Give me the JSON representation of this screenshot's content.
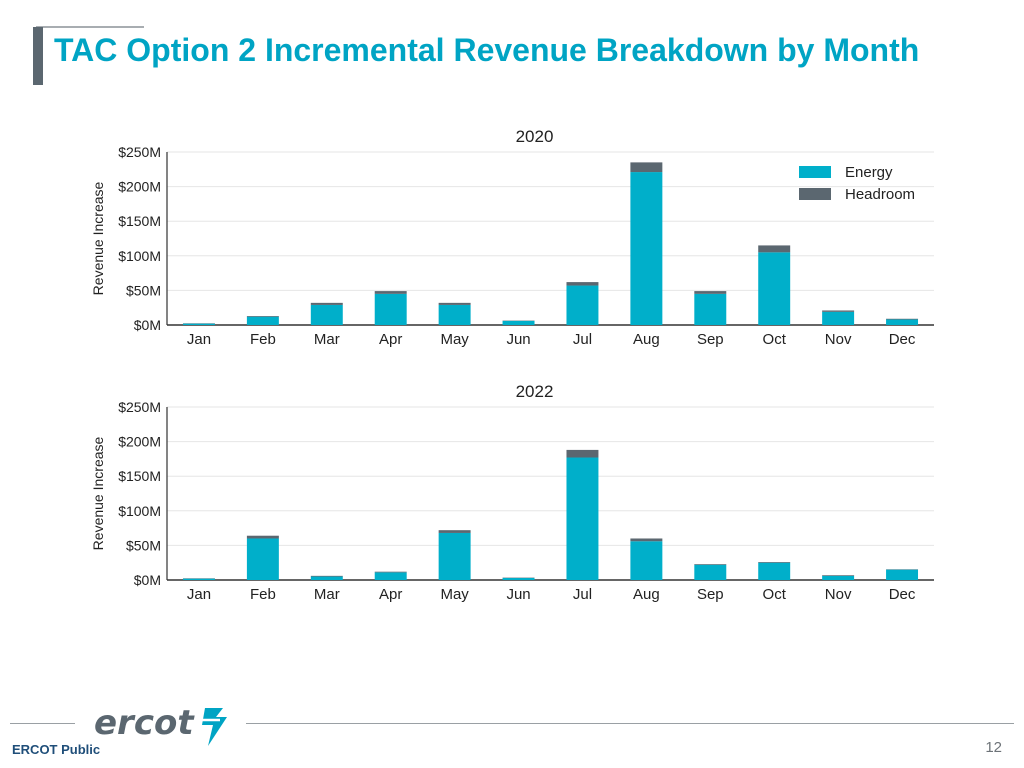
{
  "slide": {
    "title": "TAC Option 2 Incremental Revenue Breakdown by Month",
    "footer_label": "ERCOT Public",
    "page_number": "12",
    "logo_text": "ercot"
  },
  "colors": {
    "title": "#00a4c4",
    "energy": "#00afca",
    "headroom": "#5b6770",
    "axis_text": "#222222",
    "grid": "#e6e6e6"
  },
  "chart_data": [
    {
      "type": "bar",
      "stacked": true,
      "title": "2020",
      "ylabel": "Revenue Increase",
      "xlabel": "",
      "ylim": [
        0,
        250
      ],
      "yticks": [
        0,
        50,
        100,
        150,
        200,
        250
      ],
      "ytick_labels": [
        "$0M",
        "$50M",
        "$100M",
        "$150M",
        "$200M",
        "$250M"
      ],
      "grid": true,
      "legend_position": "top-right",
      "categories": [
        "Jan",
        "Feb",
        "Mar",
        "Apr",
        "May",
        "Jun",
        "Jul",
        "Aug",
        "Sep",
        "Oct",
        "Nov",
        "Dec"
      ],
      "series": [
        {
          "name": "Energy",
          "values": [
            2,
            12,
            29,
            45,
            29,
            6,
            57,
            221,
            45,
            105,
            19,
            8
          ]
        },
        {
          "name": "Headroom",
          "values": [
            0.5,
            1,
            3,
            4,
            3,
            0.5,
            5,
            14,
            4,
            10,
            2,
            1
          ]
        }
      ]
    },
    {
      "type": "bar",
      "stacked": true,
      "title": "2022",
      "ylabel": "Revenue Increase",
      "xlabel": "",
      "ylim": [
        0,
        250
      ],
      "yticks": [
        0,
        50,
        100,
        150,
        200,
        250
      ],
      "ytick_labels": [
        "$0M",
        "$50M",
        "$100M",
        "$150M",
        "$200M",
        "$250M"
      ],
      "grid": true,
      "categories": [
        "Jan",
        "Feb",
        "Mar",
        "Apr",
        "May",
        "Jun",
        "Jul",
        "Aug",
        "Sep",
        "Oct",
        "Nov",
        "Dec"
      ],
      "series": [
        {
          "name": "Energy",
          "values": [
            2,
            60,
            5,
            11,
            68,
            3,
            177,
            56,
            22,
            25,
            6,
            15
          ]
        },
        {
          "name": "Headroom",
          "values": [
            0.5,
            4,
            1,
            1,
            4,
            0.5,
            11,
            4,
            1,
            1,
            1,
            0.5
          ]
        }
      ]
    }
  ]
}
